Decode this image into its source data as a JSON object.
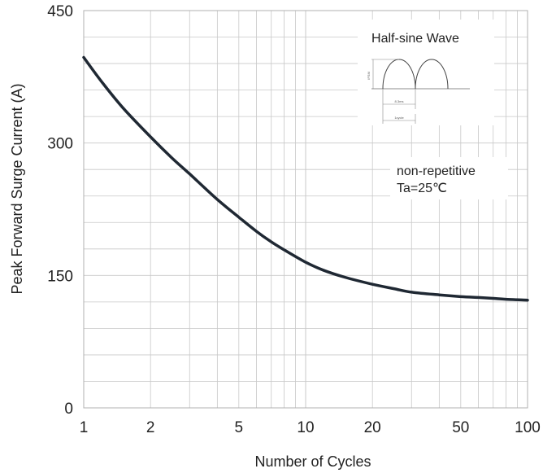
{
  "chart_data": {
    "type": "line",
    "xlabel": "Number of Cycles",
    "ylabel": "Peak Forward Surge Current (A)",
    "xscale": "log",
    "xlim": [
      1,
      100
    ],
    "ylim": [
      0,
      450
    ],
    "grid": true,
    "x_ticks": [
      "1",
      "2",
      "5",
      "10",
      "20",
      "50",
      "100"
    ],
    "y_ticks": [
      "0",
      "150",
      "300",
      "450"
    ],
    "series": [
      {
        "x": [
          1,
          1.2,
          1.5,
          2,
          2.5,
          3,
          4,
          5,
          6,
          7,
          8,
          10,
          12,
          15,
          20,
          25,
          30,
          40,
          50,
          60,
          70,
          80,
          100
        ],
        "y": [
          397,
          370,
          340,
          307,
          283,
          265,
          236,
          216,
          200,
          188,
          179,
          165,
          156,
          148,
          140,
          135,
          131,
          128,
          126,
          125,
          124,
          123,
          122
        ]
      }
    ],
    "annotations": {
      "inset_title": "Half-sine Wave",
      "inset_labels": [
        "IFSM",
        "8.3ms",
        "1cycle"
      ],
      "note_line1": "non-repetitive",
      "note_line2": "Ta=25℃"
    },
    "line_color": "#1f2833",
    "grid_color": "#c8c8c8"
  }
}
